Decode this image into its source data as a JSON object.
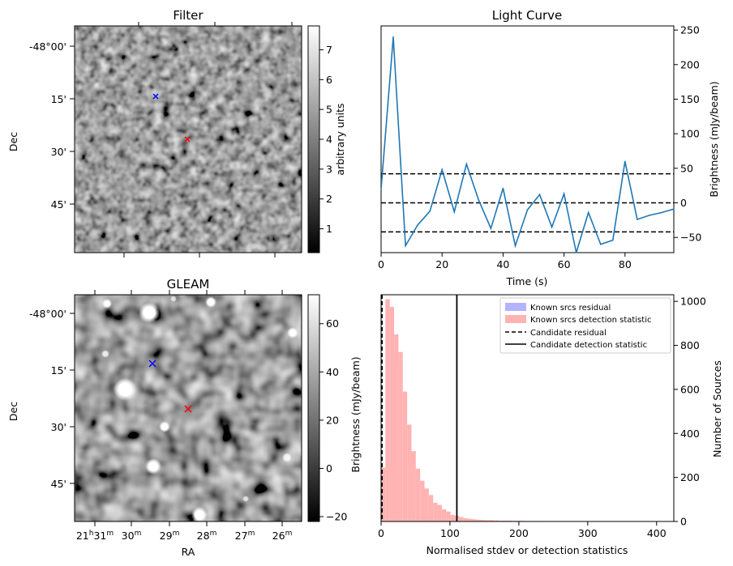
{
  "chart_data": [
    {
      "type": "heatmap",
      "name": "filter",
      "title": "Filter",
      "ylabel": "Dec",
      "xlabel": "",
      "y_tick_labels": [
        "-48°00'",
        "15'",
        "30'",
        "45'"
      ],
      "colorbar": {
        "label": "arbitrary units",
        "range": [
          0.2,
          7.8
        ],
        "ticks": [
          "1",
          "2",
          "3",
          "4",
          "5",
          "6",
          "7"
        ],
        "tick_values": [
          1,
          2,
          3,
          4,
          5,
          6,
          7
        ]
      },
      "markers": [
        {
          "name": "known-source",
          "symbol": "x",
          "color": "#0000ff"
        },
        {
          "name": "candidate",
          "symbol": "x",
          "color": "#ff0000"
        }
      ]
    },
    {
      "type": "line",
      "name": "light-curve",
      "title": "Light Curve",
      "xlabel": "Time (s)",
      "ylabel": "Brightness (mJy/beam)",
      "xlim": [
        0,
        96
      ],
      "ylim": [
        -72,
        256
      ],
      "x_ticks": [
        0,
        20,
        40,
        60,
        80
      ],
      "y_ticks": [
        -50,
        0,
        50,
        100,
        150,
        200,
        250
      ],
      "x": [
        0,
        4,
        8,
        12,
        16,
        20,
        24,
        28,
        32,
        36,
        40,
        44,
        48,
        52,
        56,
        60,
        64,
        68,
        72,
        76,
        80,
        84,
        88,
        92,
        96
      ],
      "y": [
        20,
        240,
        -62,
        -32,
        -12,
        48,
        -13,
        56,
        4,
        -37,
        21,
        -62,
        -10,
        12,
        -35,
        13,
        -72,
        -14,
        -60,
        -54,
        60,
        -24,
        -18,
        -14,
        -9
      ],
      "series_color": "#1f77b4",
      "hlines": [
        42,
        0,
        -42
      ]
    },
    {
      "type": "heatmap",
      "name": "gleam",
      "title": "GLEAM",
      "xlabel": "RA",
      "ylabel": "Dec",
      "x_tick_labels": [
        {
          "h": "21",
          "hs": "h",
          "m": "31",
          "ms": "m"
        },
        {
          "m": "30",
          "ms": "m"
        },
        {
          "m": "29",
          "ms": "m"
        },
        {
          "m": "28",
          "ms": "m"
        },
        {
          "m": "27",
          "ms": "m"
        },
        {
          "m": "26",
          "ms": "m"
        }
      ],
      "y_tick_labels": [
        "-48°00'",
        "15'",
        "30'",
        "45'"
      ],
      "colorbar": {
        "range": [
          -22,
          72
        ],
        "ticks": [
          "−20",
          "0",
          "20",
          "40",
          "60"
        ],
        "tick_values": [
          -20,
          0,
          20,
          40,
          60
        ]
      },
      "markers": [
        {
          "name": "known-source",
          "symbol": "x",
          "color": "#0000ff"
        },
        {
          "name": "candidate",
          "symbol": "x",
          "color": "#ff0000"
        }
      ]
    },
    {
      "type": "bar",
      "name": "histogram",
      "xlabel": "Normalised stdev or detection statistics",
      "ylabel_left": "Brightness (mJy/beam)",
      "ylabel_right": "Number of Sources",
      "xlim": [
        0,
        425
      ],
      "ylim": [
        0,
        1030
      ],
      "x_ticks": [
        0,
        100,
        200,
        300,
        400
      ],
      "y_ticks": [
        0,
        200,
        400,
        600,
        800,
        1000
      ],
      "bin_width": 6.3,
      "bin_start": 0,
      "counts": [
        245,
        1010,
        975,
        850,
        770,
        590,
        440,
        320,
        240,
        185,
        150,
        120,
        85,
        75,
        55,
        45,
        30,
        25,
        20,
        15,
        12,
        10,
        8,
        7,
        6,
        6,
        5,
        4,
        4,
        4,
        3,
        3,
        3,
        2,
        2,
        2,
        2,
        2,
        1,
        1,
        1,
        1,
        1,
        1,
        1,
        1,
        1,
        1,
        1,
        1,
        1,
        1,
        1,
        1,
        1,
        1,
        1,
        1,
        1,
        1,
        1,
        1,
        1,
        1,
        1
      ],
      "candidate_residual": 1.5,
      "candidate_detection_statistic": 110,
      "legend": [
        {
          "label": "Known srcs residual",
          "style": "patch",
          "color": "#b3b3ff"
        },
        {
          "label": "Known srcs detection statistic",
          "style": "patch",
          "color": "#ffb3b3"
        },
        {
          "label": "Candidate residual",
          "style": "dashed",
          "color": "#000000"
        },
        {
          "label": "Candidate detection statistic",
          "style": "solid",
          "color": "#000000"
        }
      ]
    }
  ]
}
